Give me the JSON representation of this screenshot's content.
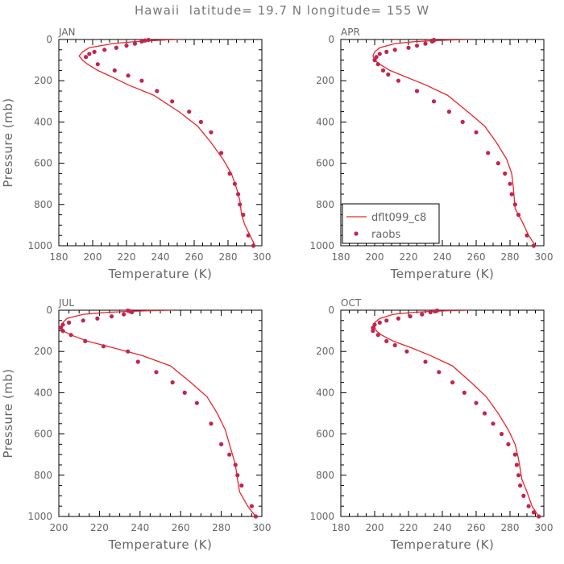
{
  "figure": {
    "title": "Hawaii  latitude= 19.7 N longitude= 155 W"
  },
  "colors": {
    "model": "#e8262b",
    "obs": "#c2244f",
    "axis": "#000000",
    "text": "#666666"
  },
  "chart_data": [
    {
      "type": "line",
      "panel_label": "JAN",
      "xlabel": "Temperature (K)",
      "ylabel": "Pressure (mb)",
      "xlim": [
        180,
        300
      ],
      "ylim": [
        1000,
        0
      ],
      "y_inverted": true,
      "xticks": [
        180,
        200,
        220,
        240,
        260,
        280,
        300
      ],
      "yticks": [
        0,
        200,
        400,
        600,
        800,
        1000
      ],
      "grid": false,
      "series": [
        {
          "name": "dflt099_c8",
          "style": "line",
          "x": [
            251,
            244,
            236,
            225,
            212,
            198,
            194,
            192,
            194,
            197,
            203,
            211,
            221,
            236,
            251,
            262,
            270,
            277,
            282,
            285,
            287,
            288,
            290,
            293,
            296
          ],
          "y": [
            0,
            2,
            5,
            10,
            20,
            40,
            60,
            80,
            100,
            120,
            150,
            180,
            220,
            270,
            350,
            420,
            500,
            580,
            650,
            720,
            780,
            850,
            900,
            950,
            1000
          ]
        },
        {
          "name": "raobs",
          "style": "points",
          "x": [
            233,
            231,
            229,
            225,
            220,
            214,
            207,
            201,
            198,
            196,
            203,
            213,
            221,
            229,
            238,
            247,
            257,
            264,
            270,
            276,
            281,
            284,
            286,
            287,
            289,
            292,
            295
          ],
          "y": [
            2,
            5,
            10,
            20,
            30,
            40,
            50,
            60,
            70,
            85,
            120,
            150,
            175,
            200,
            250,
            300,
            350,
            400,
            450,
            550,
            650,
            700,
            750,
            800,
            850,
            950,
            1000
          ]
        }
      ]
    },
    {
      "type": "line",
      "panel_label": "APR",
      "xlabel": "Temperature (K)",
      "ylabel": "",
      "xlim": [
        180,
        300
      ],
      "ylim": [
        1000,
        0
      ],
      "y_inverted": true,
      "xticks": [
        180,
        200,
        220,
        240,
        260,
        280,
        300
      ],
      "yticks": [
        0,
        200,
        400,
        600,
        800,
        1000
      ],
      "grid": false,
      "legend": {
        "placement": "lower-left",
        "entries": [
          "dflt099_c8",
          "raobs"
        ]
      },
      "series": [
        {
          "name": "dflt099_c8",
          "style": "line",
          "x": [
            256,
            247,
            236,
            224,
            212,
            203,
            200,
            199,
            200,
            203,
            209,
            218,
            230,
            243,
            255,
            265,
            272,
            278,
            281,
            282,
            283,
            287,
            291,
            295
          ],
          "y": [
            0,
            2,
            5,
            10,
            20,
            40,
            60,
            80,
            100,
            120,
            150,
            180,
            220,
            270,
            350,
            420,
            500,
            580,
            650,
            720,
            820,
            880,
            950,
            1000
          ]
        },
        {
          "name": "raobs",
          "style": "points",
          "x": [
            235,
            235,
            234,
            230,
            225,
            220,
            212,
            207,
            203,
            201,
            200,
            202,
            205,
            208,
            214,
            225,
            235,
            244,
            252,
            260,
            267,
            273,
            277,
            280,
            281,
            283,
            285,
            290,
            294
          ],
          "y": [
            2,
            5,
            10,
            20,
            30,
            40,
            50,
            60,
            70,
            85,
            100,
            120,
            150,
            170,
            200,
            250,
            300,
            350,
            400,
            450,
            550,
            600,
            650,
            700,
            750,
            800,
            850,
            950,
            1000
          ]
        }
      ]
    },
    {
      "type": "line",
      "panel_label": "JUL",
      "xlabel": "Temperature (K)",
      "ylabel": "Pressure (mb)",
      "xlim": [
        200,
        300
      ],
      "ylim": [
        1000,
        0
      ],
      "y_inverted": true,
      "xticks": [
        200,
        220,
        240,
        260,
        280,
        300
      ],
      "yticks": [
        0,
        200,
        400,
        600,
        800,
        1000
      ],
      "grid": false,
      "series": [
        {
          "name": "dflt099_c8",
          "style": "line",
          "x": [
            256,
            247,
            236,
            224,
            212,
            204,
            202,
            201,
            202,
            206,
            214,
            226,
            241,
            255,
            265,
            273,
            278,
            282,
            287,
            288,
            289,
            293,
            297
          ],
          "y": [
            0,
            2,
            5,
            10,
            20,
            40,
            60,
            80,
            100,
            120,
            150,
            180,
            220,
            270,
            350,
            420,
            500,
            580,
            750,
            820,
            880,
            950,
            1000
          ]
        },
        {
          "name": "raobs",
          "style": "points",
          "x": [
            234,
            235,
            236,
            232,
            226,
            219,
            212,
            205,
            202,
            201,
            202,
            206,
            213,
            222,
            234,
            239,
            248,
            256,
            262,
            268,
            275,
            280,
            284,
            287,
            288,
            290,
            295,
            297
          ],
          "y": [
            2,
            5,
            10,
            20,
            30,
            40,
            50,
            60,
            70,
            85,
            100,
            120,
            150,
            175,
            200,
            250,
            300,
            350,
            400,
            450,
            550,
            650,
            700,
            750,
            800,
            850,
            950,
            1000
          ]
        }
      ]
    },
    {
      "type": "line",
      "panel_label": "OCT",
      "xlabel": "Temperature (K)",
      "ylabel": "",
      "xlim": [
        180,
        300
      ],
      "ylim": [
        1000,
        0
      ],
      "y_inverted": true,
      "xticks": [
        180,
        200,
        220,
        240,
        260,
        280,
        300
      ],
      "yticks": [
        0,
        200,
        400,
        600,
        800,
        1000
      ],
      "grid": false,
      "series": [
        {
          "name": "dflt099_c8",
          "style": "line",
          "x": [
            256,
            246,
            235,
            223,
            211,
            203,
            200,
            200,
            201,
            204,
            211,
            221,
            233,
            246,
            257,
            266,
            273,
            279,
            283,
            285,
            287,
            290,
            293,
            297
          ],
          "y": [
            0,
            2,
            5,
            10,
            20,
            40,
            60,
            80,
            100,
            120,
            150,
            180,
            220,
            270,
            350,
            420,
            500,
            580,
            650,
            720,
            820,
            880,
            950,
            1000
          ]
        },
        {
          "name": "raobs",
          "style": "points",
          "x": [
            237,
            236,
            233,
            228,
            221,
            214,
            207,
            203,
            200,
            199,
            199,
            202,
            207,
            212,
            219,
            230,
            238,
            246,
            253,
            260,
            265,
            270,
            275,
            279,
            283,
            284,
            285,
            286,
            288,
            291,
            294,
            297
          ],
          "y": [
            2,
            5,
            10,
            20,
            30,
            40,
            50,
            60,
            70,
            85,
            100,
            120,
            150,
            170,
            200,
            250,
            300,
            350,
            400,
            450,
            500,
            550,
            600,
            650,
            700,
            750,
            800,
            850,
            900,
            950,
            980,
            1000
          ]
        }
      ]
    }
  ]
}
